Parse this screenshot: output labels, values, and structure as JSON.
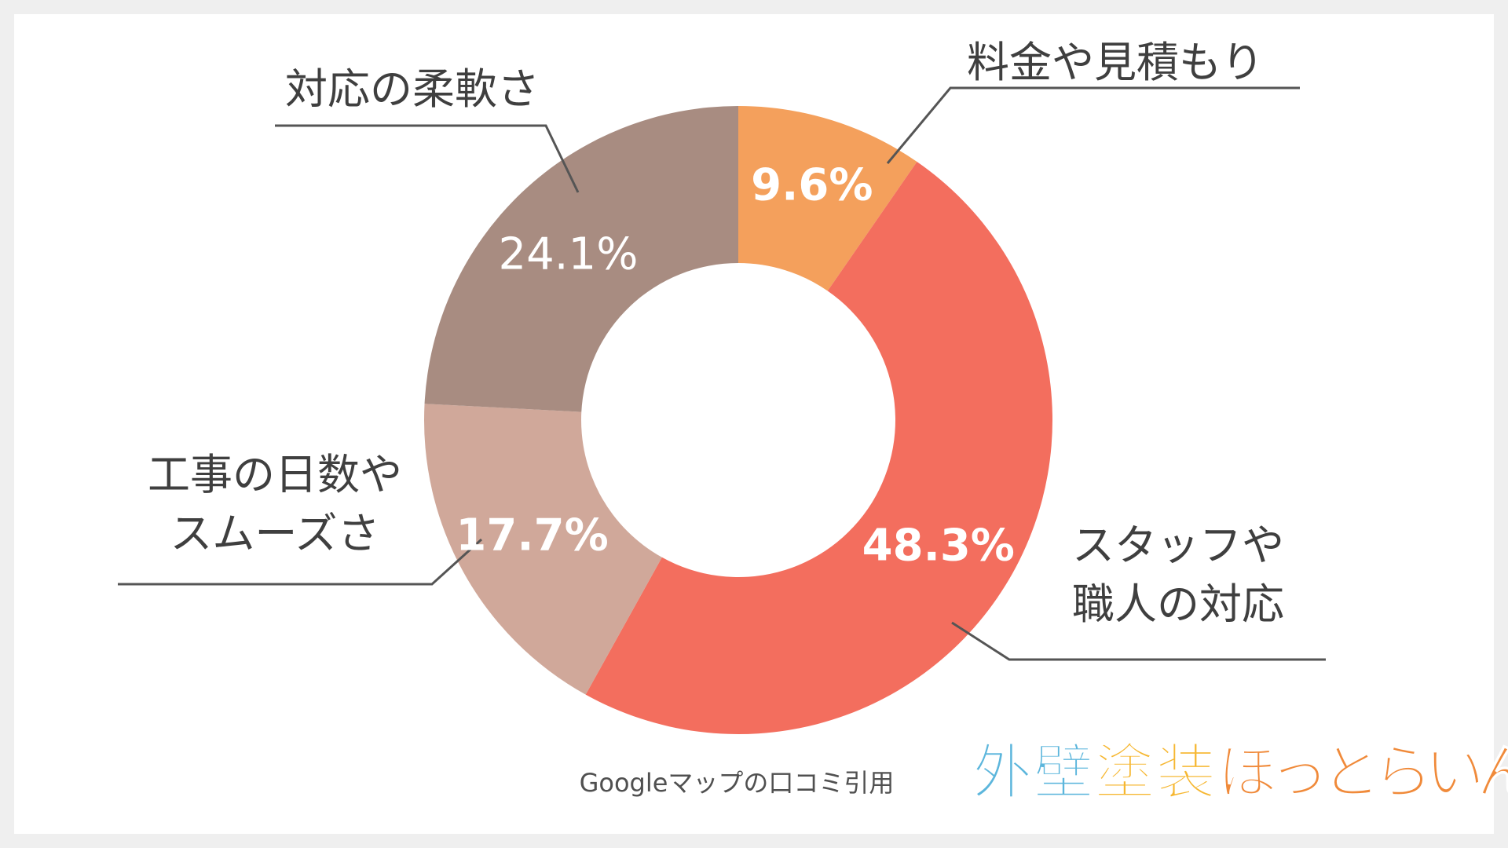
{
  "chart_data": {
    "type": "pie",
    "title": "",
    "categories": [
      "料金や見積もり",
      "スタッフや職人の対応",
      "工事の日数やスムーズさ",
      "対応の柔軟さ"
    ],
    "label_lines": [
      [
        "料金や見積もり"
      ],
      [
        "スタッフや",
        "職人の対応"
      ],
      [
        "工事の日数や",
        "スムーズさ"
      ],
      [
        "対応の柔軟さ"
      ]
    ],
    "values": [
      9.6,
      48.3,
      17.7,
      24.1
    ],
    "value_labels": [
      "9.6%",
      "48.3%",
      "17.7%",
      "24.1%"
    ],
    "colors": [
      "#f4a05c",
      "#f36e5e",
      "#d0a89a",
      "#a88c81"
    ],
    "donut": true,
    "start": "12 o'clock",
    "direction": "clockwise",
    "legend": "none (callout labels with leader lines)"
  },
  "footer": {
    "source": "Googleマップの口コミ引用"
  },
  "logo": {
    "text": "外壁塗装ほっとらいん",
    "colors": [
      "#5cb6dc",
      "#f6b731",
      "#f08a3a"
    ]
  }
}
